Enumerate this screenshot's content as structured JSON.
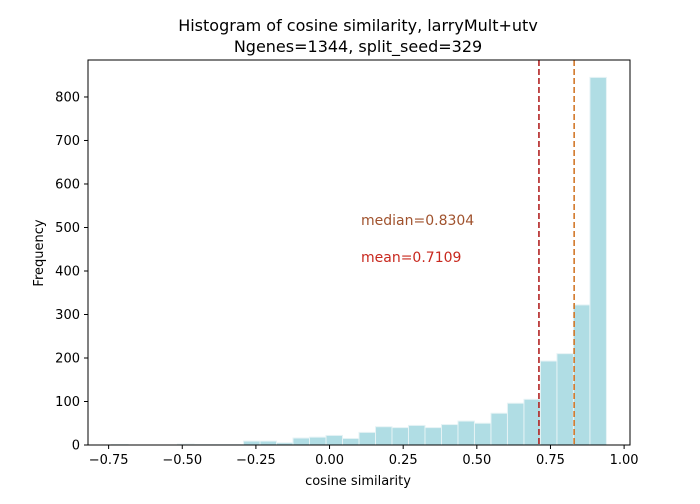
{
  "chart_data": {
    "type": "bar",
    "title": "Histogram of cosine similarity, larryMult+utv",
    "subtitle": "Ngenes=1344, split_seed=329",
    "xlabel": "cosine similarity",
    "ylabel": "Frequency",
    "xlim": [
      -0.82,
      1.02
    ],
    "ylim": [
      0,
      885
    ],
    "xticks": [
      -0.75,
      -0.5,
      -0.25,
      0.0,
      0.25,
      0.5,
      0.75,
      1.0
    ],
    "xtick_labels": [
      "−0.75",
      "−0.50",
      "−0.25",
      "0.00",
      "0.25",
      "0.50",
      "0.75",
      "1.00"
    ],
    "yticks": [
      0,
      100,
      200,
      300,
      400,
      500,
      600,
      700,
      800
    ],
    "ytick_labels": [
      "0",
      "100",
      "200",
      "300",
      "400",
      "500",
      "600",
      "700",
      "800"
    ],
    "grid": false,
    "bin_width": 0.056,
    "bin_starts": [
      -0.74,
      -0.684,
      -0.628,
      -0.572,
      -0.516,
      -0.46,
      -0.404,
      -0.348,
      -0.292,
      -0.236,
      -0.18,
      -0.124,
      -0.068,
      -0.012,
      0.044,
      0.1,
      0.156,
      0.212,
      0.268,
      0.324,
      0.38,
      0.436,
      0.492,
      0.548,
      0.604,
      0.66,
      0.716,
      0.772,
      0.828,
      0.884
    ],
    "values": [
      1,
      0,
      0,
      0,
      2,
      1,
      1,
      1,
      9,
      9,
      5,
      16,
      18,
      22,
      15,
      29,
      42,
      40,
      45,
      40,
      47,
      55,
      50,
      73,
      96,
      105,
      193,
      210,
      322,
      845
    ],
    "bar_color": "#b0dde4",
    "bar_edge_color": "#e6f3f5",
    "lines": [
      {
        "label": "median=0.8304",
        "x": 0.8304,
        "color": "#d2782a",
        "text_color": "#a0522d"
      },
      {
        "label": "mean=0.7109",
        "x": 0.7109,
        "color": "#b22222",
        "text_color": "#c8281e"
      }
    ]
  }
}
